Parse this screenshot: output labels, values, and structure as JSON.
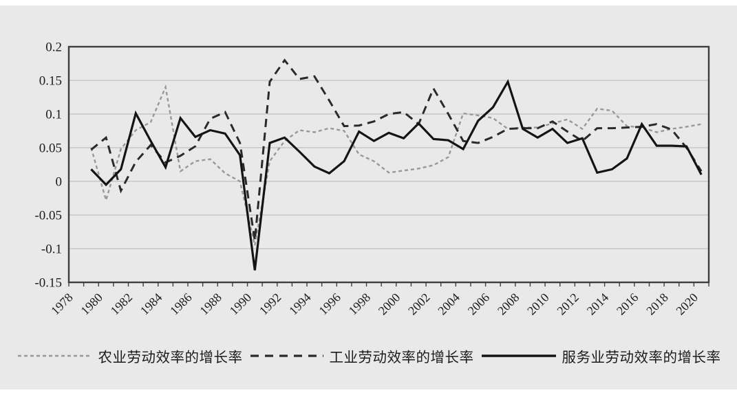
{
  "chart_data": {
    "type": "line",
    "title": "",
    "x_start_year": 1979,
    "x_axis": {
      "range_years": [
        1978,
        2020
      ],
      "tick_label_years": [
        1978,
        1980,
        1982,
        1984,
        1986,
        1988,
        1990,
        1992,
        1994,
        1996,
        1998,
        2000,
        2002,
        2004,
        2006,
        2008,
        2010,
        2012,
        2014,
        2016,
        2018,
        2020
      ]
    },
    "y_axis": {
      "min": -0.15,
      "max": 0.2,
      "step": 0.05,
      "tick_labels": [
        "0.2",
        "0.15",
        "0.1",
        "0.05",
        "0",
        "-0.05",
        "-0.1",
        "-0.15"
      ]
    },
    "grid": true,
    "legend_position": "bottom",
    "series": [
      {
        "name": "农业劳动效率的增长率",
        "style": "dashed-fine",
        "color": "#98989a",
        "values": [
          0.05,
          -0.028,
          0.048,
          0.076,
          0.088,
          0.14,
          0.015,
          0.03,
          0.033,
          0.012,
          0.0,
          -0.095,
          0.03,
          0.06,
          0.076,
          0.073,
          0.079,
          0.075,
          0.04,
          0.03,
          0.013,
          0.016,
          0.019,
          0.024,
          0.036,
          0.101,
          0.098,
          0.094,
          0.078,
          0.08,
          0.08,
          0.086,
          0.092,
          0.078,
          0.108,
          0.105,
          0.082,
          0.08,
          0.073,
          0.078,
          0.081,
          0.085
        ]
      },
      {
        "name": "工业劳动效率的增长率",
        "style": "dashed",
        "color": "#2a2a2a",
        "values": [
          0.047,
          0.065,
          -0.014,
          0.029,
          0.054,
          0.028,
          0.038,
          0.052,
          0.093,
          0.103,
          0.057,
          -0.088,
          0.148,
          0.18,
          0.152,
          0.156,
          0.12,
          0.082,
          0.083,
          0.089,
          0.1,
          0.103,
          0.085,
          0.138,
          0.1,
          0.06,
          0.057,
          0.066,
          0.078,
          0.079,
          0.079,
          0.089,
          0.074,
          0.06,
          0.079,
          0.079,
          0.08,
          0.081,
          0.085,
          0.077,
          0.05,
          0.015
        ]
      },
      {
        "name": "服务业劳动效率的增长率",
        "style": "solid",
        "color": "#141414",
        "values": [
          0.018,
          -0.005,
          0.018,
          0.101,
          0.06,
          0.021,
          0.094,
          0.066,
          0.076,
          0.071,
          0.039,
          -0.132,
          0.057,
          0.065,
          0.044,
          0.022,
          0.012,
          0.03,
          0.074,
          0.06,
          0.072,
          0.064,
          0.086,
          0.063,
          0.061,
          0.048,
          0.09,
          0.11,
          0.148,
          0.078,
          0.065,
          0.078,
          0.057,
          0.064,
          0.013,
          0.018,
          0.034,
          0.085,
          0.053,
          0.053,
          0.052,
          0.01
        ]
      }
    ]
  },
  "colors": {
    "panel_background": "#e9e9ea",
    "plot_frame": "#3d3d3d",
    "gridline": "#b5b5b5",
    "text": "#1c1c1c"
  }
}
